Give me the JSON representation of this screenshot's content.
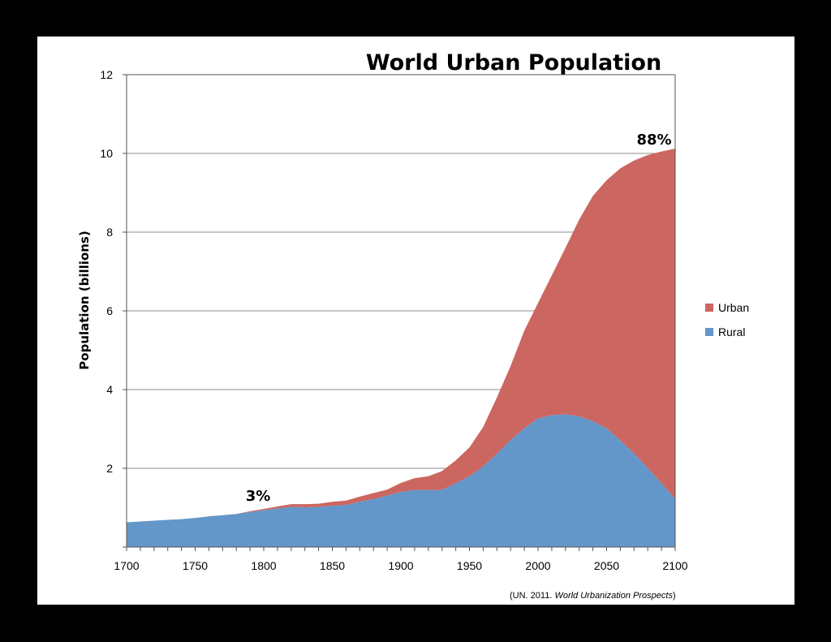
{
  "chart_data": {
    "type": "area",
    "stacked": true,
    "title": "World Urban Population",
    "xlabel": "",
    "ylabel": "Population (billions)",
    "xlim": [
      1700,
      2100
    ],
    "ylim": [
      0,
      12
    ],
    "x_ticks": [
      "1700",
      "1750",
      "1800",
      "1850",
      "1900",
      "1950",
      "2000",
      "2050",
      "2100"
    ],
    "y_ticks": [
      "2",
      "4",
      "6",
      "8",
      "10",
      "12"
    ],
    "grid": "horizontal",
    "legend_position": "right",
    "x": [
      1700,
      1710,
      1720,
      1730,
      1740,
      1750,
      1760,
      1770,
      1780,
      1790,
      1800,
      1810,
      1820,
      1830,
      1840,
      1850,
      1860,
      1870,
      1880,
      1890,
      1900,
      1910,
      1920,
      1930,
      1940,
      1950,
      1960,
      1970,
      1980,
      1990,
      2000,
      2010,
      2020,
      2030,
      2040,
      2050,
      2060,
      2070,
      2080,
      2090,
      2100
    ],
    "series": [
      {
        "name": "Rural",
        "color": "#6497c9",
        "values": [
          0.63,
          0.65,
          0.67,
          0.69,
          0.71,
          0.74,
          0.78,
          0.81,
          0.84,
          0.89,
          0.94,
          0.98,
          1.02,
          1.01,
          1.02,
          1.05,
          1.07,
          1.15,
          1.22,
          1.31,
          1.4,
          1.45,
          1.45,
          1.45,
          1.62,
          1.8,
          2.05,
          2.37,
          2.72,
          3.02,
          3.27,
          3.35,
          3.37,
          3.32,
          3.2,
          3.01,
          2.71,
          2.37,
          2.01,
          1.62,
          1.22
        ]
      },
      {
        "name": "Urban",
        "color": "#cc6660",
        "values": [
          0.0,
          0.0,
          0.0,
          0.0,
          0.0,
          0.0,
          0.0,
          0.0,
          0.0,
          0.02,
          0.03,
          0.05,
          0.07,
          0.08,
          0.08,
          0.1,
          0.11,
          0.13,
          0.15,
          0.15,
          0.23,
          0.3,
          0.35,
          0.48,
          0.58,
          0.73,
          1.0,
          1.43,
          1.88,
          2.48,
          2.93,
          3.55,
          4.23,
          5.0,
          5.72,
          6.31,
          6.91,
          7.45,
          7.95,
          8.43,
          8.9
        ]
      }
    ],
    "annotations": [
      "3%",
      "88%"
    ],
    "source": {
      "prefix": "(UN. 2011. ",
      "italic": "World Urbanization Prospects",
      "suffix": ")"
    }
  }
}
